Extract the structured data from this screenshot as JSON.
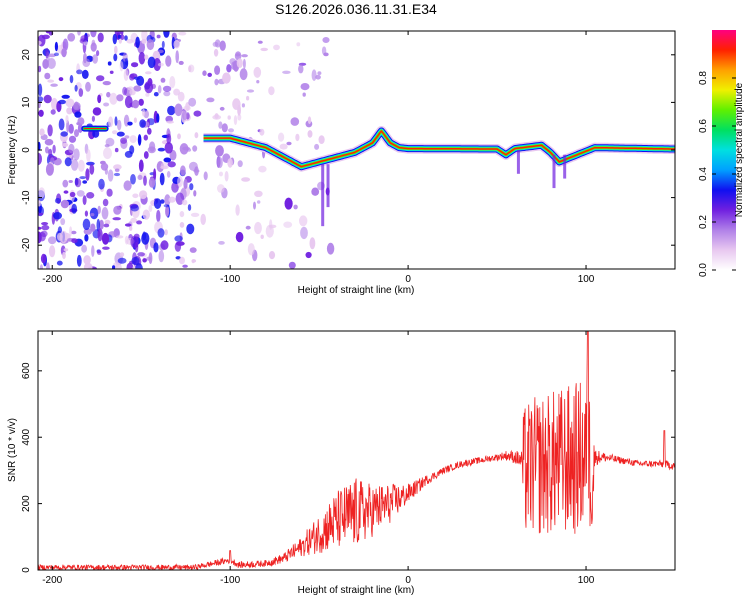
{
  "figure": {
    "title": "S126.2026.036.11.31.E34"
  },
  "chart_data": [
    {
      "type": "heatmap",
      "name": "spectrogram",
      "xlabel": "Height of straight line (km)",
      "ylabel": "Frequency (Hz)",
      "xlim": [
        -208,
        150
      ],
      "ylim": [
        -25,
        25
      ],
      "xticks": [
        -200,
        -100,
        0,
        100
      ],
      "yticks": [
        -20,
        -10,
        0,
        10,
        20
      ],
      "colorbar": {
        "label": "Normalized spectral amplitude",
        "range": [
          0.0,
          1.0
        ],
        "ticks": [
          0.0,
          0.2,
          0.4,
          0.6,
          0.8
        ],
        "colors": [
          "#ffffff",
          "#e8c8f0",
          "#b080e8",
          "#7020e0",
          "#1010f0",
          "#00a0ff",
          "#00e0e0",
          "#00e060",
          "#60f000",
          "#f0f000",
          "#ffa000",
          "#ff2000",
          "#ff0080"
        ]
      },
      "ridge": [
        [
          -180,
          4.5
        ],
        [
          -170,
          4.5
        ],
        [
          -115,
          2.5
        ],
        [
          -100,
          2.5
        ],
        [
          -90,
          1.5
        ],
        [
          -80,
          0.5
        ],
        [
          -70,
          -1.5
        ],
        [
          -60,
          -3.5
        ],
        [
          -50,
          -2.5
        ],
        [
          -40,
          -1.5
        ],
        [
          -30,
          -0.5
        ],
        [
          -20,
          1.5
        ],
        [
          -15,
          4.0
        ],
        [
          -10,
          1.5
        ],
        [
          -5,
          0.5
        ],
        [
          0,
          0.3
        ],
        [
          50,
          0.2
        ],
        [
          55,
          -1.0
        ],
        [
          60,
          0.3
        ],
        [
          75,
          1.0
        ],
        [
          80,
          -0.5
        ],
        [
          85,
          -2.5
        ],
        [
          95,
          -1.0
        ],
        [
          105,
          0.5
        ],
        [
          150,
          0.2
        ]
      ],
      "noise_region_km": [
        -208,
        -80
      ]
    },
    {
      "type": "line",
      "name": "snr",
      "xlabel": "Height of straight line (km)",
      "ylabel": "SNR (10 * v/v)",
      "xlim": [
        -208,
        150
      ],
      "ylim": [
        0,
        720
      ],
      "xticks": [
        -200,
        -100,
        0,
        100
      ],
      "yticks": [
        0,
        200,
        400,
        600
      ],
      "color": "#ee2222",
      "envelope": {
        "x": [
          -208,
          -120,
          -100,
          -95,
          -80,
          -70,
          -60,
          -50,
          -40,
          -30,
          -20,
          -10,
          0,
          10,
          20,
          30,
          40,
          50,
          55,
          60,
          64,
          65,
          70,
          80,
          90,
          100,
          104,
          105,
          110,
          120,
          130,
          140,
          150
        ],
        "mean": [
          8,
          8,
          30,
          15,
          20,
          35,
          70,
          110,
          150,
          170,
          180,
          200,
          230,
          270,
          300,
          320,
          330,
          340,
          345,
          340,
          330,
          300,
          310,
          320,
          330,
          340,
          320,
          340,
          340,
          330,
          320,
          320,
          315
        ],
        "amp": [
          8,
          8,
          10,
          10,
          10,
          15,
          30,
          60,
          90,
          110,
          80,
          60,
          30,
          15,
          10,
          10,
          10,
          10,
          15,
          20,
          30,
          200,
          210,
          220,
          230,
          240,
          220,
          25,
          15,
          10,
          10,
          10,
          15
        ]
      },
      "peaks": [
        {
          "x": -100,
          "y": 58
        },
        {
          "x": 101,
          "y": 720
        },
        {
          "x": 144,
          "y": 420
        }
      ]
    }
  ]
}
